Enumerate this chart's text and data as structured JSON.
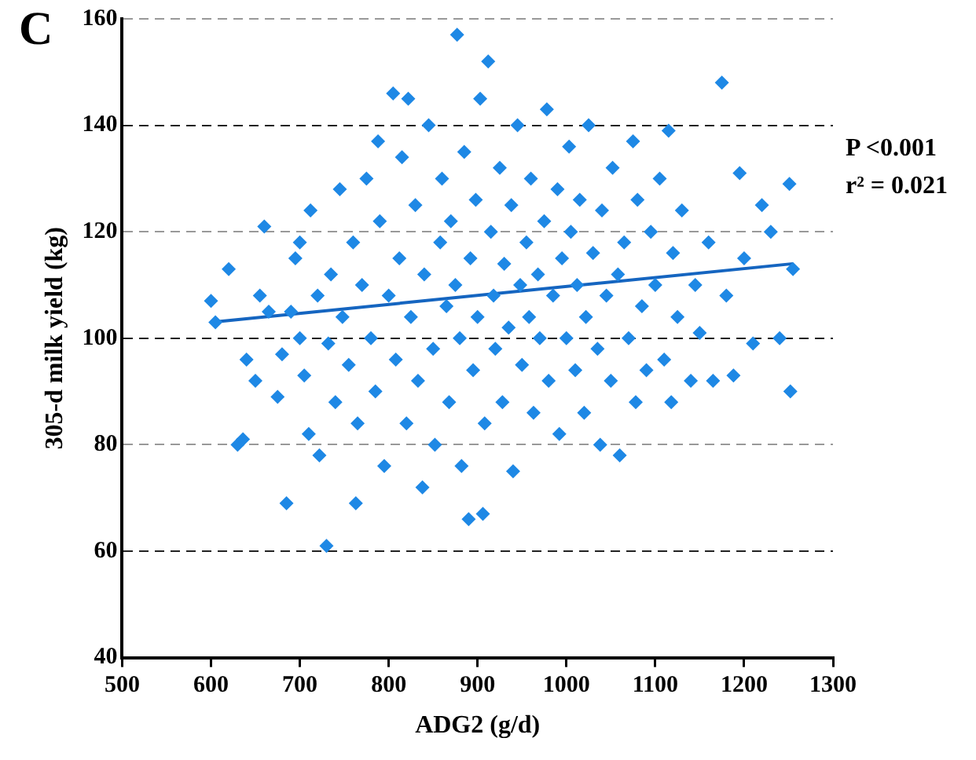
{
  "chart_data": {
    "type": "scatter",
    "xlabel": "ADG2 (g/d)",
    "ylabel": "305-d milk yield (kg)",
    "xlim": [
      500,
      1300
    ],
    "ylim": [
      40,
      160
    ],
    "xticks": [
      500,
      600,
      700,
      800,
      900,
      1000,
      1100,
      1200,
      1300
    ],
    "yticks": [
      40,
      60,
      80,
      100,
      120,
      140,
      160
    ],
    "grid": "y",
    "annotations": [
      "C",
      "P <0.001",
      "r² = 0.021"
    ],
    "series": [
      {
        "color": "#1e88e5",
        "marker": "diamond",
        "x": [
          600,
          605,
          620,
          630,
          636,
          640,
          650,
          655,
          660,
          665,
          675,
          680,
          685,
          690,
          695,
          700,
          700,
          705,
          710,
          712,
          720,
          722,
          730,
          732,
          735,
          740,
          745,
          748,
          755,
          760,
          763,
          765,
          770,
          775,
          780,
          785,
          788,
          790,
          795,
          800,
          805,
          808,
          812,
          815,
          820,
          822,
          825,
          830,
          833,
          838,
          840,
          845,
          850,
          852,
          858,
          860,
          865,
          868,
          870,
          875,
          877,
          880,
          882,
          885,
          890,
          892,
          895,
          898,
          900,
          903,
          906,
          908,
          912,
          915,
          918,
          920,
          925,
          928,
          930,
          935,
          938,
          940,
          945,
          948,
          950,
          955,
          958,
          960,
          963,
          968,
          970,
          975,
          978,
          980,
          985,
          990,
          992,
          995,
          1000,
          1003,
          1005,
          1010,
          1012,
          1015,
          1020,
          1022,
          1025,
          1030,
          1035,
          1038,
          1040,
          1045,
          1050,
          1052,
          1058,
          1060,
          1065,
          1070,
          1075,
          1078,
          1080,
          1085,
          1090,
          1095,
          1100,
          1105,
          1110,
          1115,
          1118,
          1120,
          1125,
          1130,
          1140,
          1145,
          1150,
          1160,
          1165,
          1175,
          1180,
          1188,
          1195,
          1200,
          1210,
          1220,
          1230,
          1240,
          1251,
          1255,
          1252
        ],
        "values": [
          107,
          103,
          113,
          80,
          81,
          96,
          92,
          108,
          121,
          105,
          89,
          97,
          69,
          105,
          115,
          100,
          118,
          93,
          82,
          124,
          108,
          78,
          61,
          99,
          112,
          88,
          128,
          104,
          95,
          118,
          69,
          84,
          110,
          130,
          100,
          90,
          137,
          122,
          76,
          108,
          146,
          96,
          115,
          134,
          84,
          145,
          104,
          125,
          92,
          72,
          112,
          140,
          98,
          80,
          118,
          130,
          106,
          88,
          122,
          110,
          157,
          100,
          76,
          135,
          66,
          115,
          94,
          126,
          104,
          145,
          67,
          84,
          152,
          120,
          108,
          98,
          132,
          88,
          114,
          102,
          125,
          75,
          140,
          110,
          95,
          118,
          104,
          130,
          86,
          112,
          100,
          122,
          143,
          92,
          108,
          128,
          82,
          115,
          100,
          136,
          120,
          94,
          110,
          126,
          86,
          104,
          140,
          116,
          98,
          80,
          124,
          108,
          92,
          132,
          112,
          78,
          118,
          100,
          137,
          88,
          126,
          106,
          94,
          120,
          110,
          130,
          96,
          139,
          88,
          116,
          104,
          124,
          92,
          110,
          101,
          118,
          92,
          148,
          108,
          93,
          131,
          115,
          99,
          125,
          120,
          100,
          129,
          113,
          90
        ]
      },
      {
        "type": "line",
        "marker": "none",
        "color": "#1565c0",
        "x": [
          600,
          1255
        ],
        "values": [
          103,
          114
        ]
      }
    ]
  }
}
